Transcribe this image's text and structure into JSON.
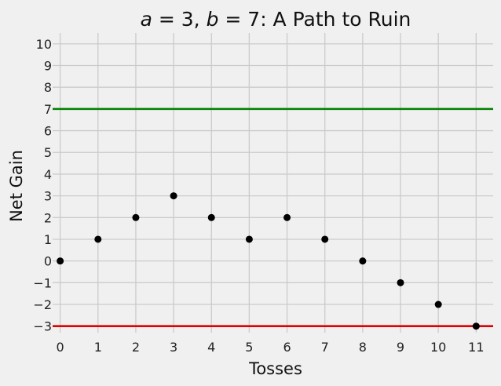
{
  "chart_data": {
    "type": "scatter",
    "title_parts": {
      "a_var": "a",
      "a_eq": " = 3, ",
      "b_var": "b",
      "b_eq": " = 7",
      "rest": ": A Path to Ruin"
    },
    "xlabel": "Tosses",
    "ylabel": "Net Gain",
    "xlim": [
      -0.2,
      11.45
    ],
    "ylim": [
      -3.3,
      10.5
    ],
    "x_ticks": [
      0,
      1,
      2,
      3,
      4,
      5,
      6,
      7,
      8,
      9,
      10,
      11
    ],
    "y_ticks": [
      -3,
      -2,
      -1,
      0,
      1,
      2,
      3,
      4,
      5,
      6,
      7,
      8,
      9,
      10
    ],
    "grid": true,
    "series": [
      {
        "x": [
          0,
          1,
          2,
          3,
          4,
          5,
          6,
          7,
          8,
          9,
          10,
          11
        ],
        "y": [
          0,
          1,
          2,
          3,
          2,
          1,
          2,
          1,
          0,
          -1,
          -2,
          -3
        ],
        "color": "#000000"
      }
    ],
    "hlines": [
      {
        "y": 7,
        "color": "#008000"
      },
      {
        "y": -3,
        "color": "#e00000"
      }
    ]
  }
}
